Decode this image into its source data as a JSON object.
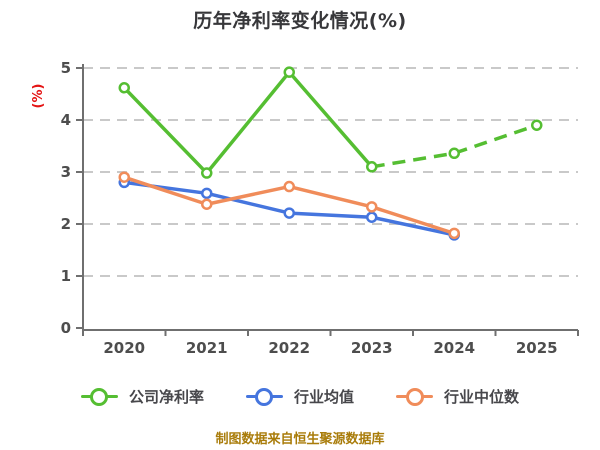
{
  "title": "历年净利率变化情况(%)",
  "y_axis_label": "(%)",
  "footer": "制图数据来自恒生聚源数据库",
  "colors": {
    "title_text": "#37373a",
    "axis_line": "#6f6f6f",
    "tick_label": "#4d4d4d",
    "gridline": "#c9c9c9",
    "y_axis_label": "#e41414",
    "footer_text": "#a97c0a",
    "legend_text": "#47474b",
    "series_company": "#55be32",
    "series_mean": "#4575de",
    "series_median": "#f08c5a"
  },
  "chart_data": {
    "type": "line",
    "title": "历年净利率变化情况(%)",
    "xlabel": "",
    "ylabel": "(%)",
    "categories": [
      "2020",
      "2021",
      "2022",
      "2023",
      "2024",
      "2025"
    ],
    "yticks": [
      0,
      1,
      2,
      3,
      4,
      5
    ],
    "ylim": [
      0,
      5
    ],
    "grid": "horizontal-dashed",
    "legend_position": "bottom",
    "series": [
      {
        "name": "公司净利率",
        "color": "#55be32",
        "values": [
          4.62,
          2.98,
          4.92,
          3.1,
          3.36,
          3.9
        ],
        "solid_until_index": 3,
        "style_note": "solid 2020-2023, dashed 2023-2025"
      },
      {
        "name": "行业均值",
        "color": "#4575de",
        "values": [
          2.8,
          2.59,
          2.21,
          2.13,
          1.79,
          null
        ],
        "solid_until_index": null,
        "style_note": "solid"
      },
      {
        "name": "行业中位数",
        "color": "#f08c5a",
        "values": [
          2.9,
          2.38,
          2.72,
          2.33,
          1.82,
          null
        ],
        "solid_until_index": null,
        "style_note": "solid"
      }
    ]
  }
}
